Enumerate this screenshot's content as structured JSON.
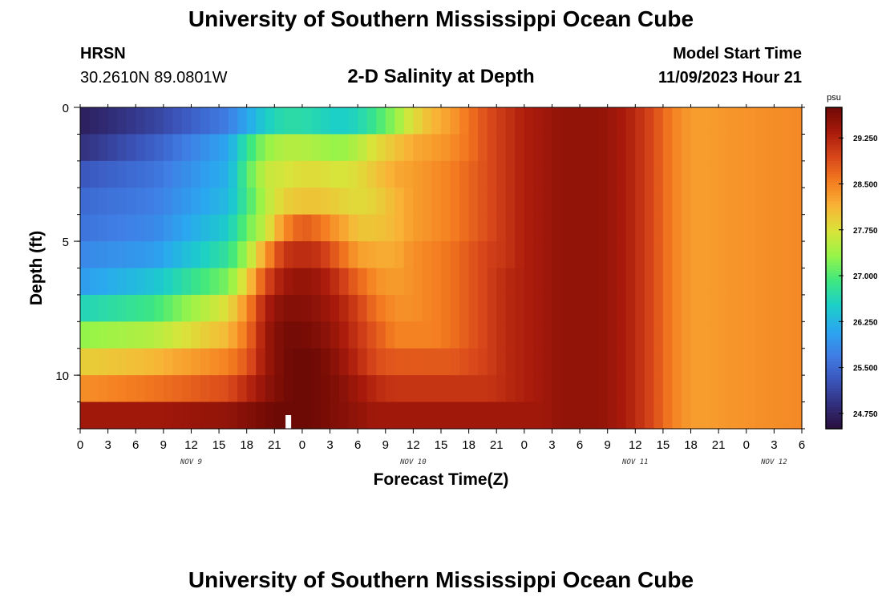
{
  "header": {
    "title": "University of Southern Mississippi Ocean Cube",
    "station": "HRSN",
    "coords": "30.2610N  89.0801W",
    "subtitle": "2-D Salinity at Depth",
    "model_label": "Model Start Time",
    "model_time": "11/09/2023 Hour 21"
  },
  "footer": {
    "title": "University of Southern Mississippi Ocean Cube"
  },
  "colors": {
    "colormap": [
      "#2a0e3d",
      "#32307e",
      "#3b57bd",
      "#3f7fe6",
      "#2aa8ef",
      "#1ccfc8",
      "#3fe87f",
      "#98f448",
      "#d9e43a",
      "#f8b436",
      "#f47c20",
      "#d8461a",
      "#a81a0b",
      "#6e0a05"
    ],
    "marker": "#ffffff"
  },
  "chart_data": {
    "type": "heatmap",
    "title": "2-D Salinity at Depth",
    "xlabel": "Forecast Time(Z)",
    "ylabel": "Depth (ft)",
    "colorbar_unit": "psu",
    "colorbar_range": [
      24.5,
      29.75
    ],
    "colorbar_ticks": [
      24.75,
      25.5,
      26.25,
      27.0,
      27.75,
      28.5,
      29.25
    ],
    "colorbar_tick_labels": [
      "24.750",
      "25.500",
      "26.250",
      "27.000",
      "27.750",
      "28.500",
      "29.250"
    ],
    "x_hours_range": [
      0,
      78
    ],
    "x_tick_step_hours": 3,
    "x_tick_labels": [
      "0",
      "3",
      "6",
      "9",
      "12",
      "15",
      "18",
      "21",
      "0",
      "3",
      "6",
      "9",
      "12",
      "15",
      "18",
      "21",
      "0",
      "3",
      "6",
      "9",
      "12",
      "15",
      "18",
      "21",
      "0",
      "3",
      "6"
    ],
    "day_labels": [
      {
        "hour": 12,
        "text": "NOV 9"
      },
      {
        "hour": 36,
        "text": "NOV 10"
      },
      {
        "hour": 60,
        "text": "NOV 11"
      },
      {
        "hour": 75,
        "text": "NOV 12"
      }
    ],
    "y_range": [
      0,
      12
    ],
    "y_ticks": [
      0,
      5,
      10
    ],
    "y_tick_labels": [
      "0",
      "5",
      "10"
    ],
    "depth_levels": [
      0.5,
      1.5,
      2.5,
      3.5,
      4.5,
      5.5,
      6.5,
      7.5,
      8.5,
      9.5,
      10.5,
      11.5
    ],
    "time_step_hours": 1,
    "current_time_marker_hour": 22.5,
    "salinity_keyframes": {
      "hours": [
        0,
        8,
        16,
        18,
        20,
        22,
        24,
        26,
        28,
        30,
        32,
        34,
        36,
        38,
        40,
        42,
        44,
        46,
        48,
        50,
        52,
        54,
        56,
        58,
        60,
        62,
        64,
        66,
        68,
        70,
        74,
        78
      ],
      "rows": [
        [
          24.7,
          25.1,
          25.7,
          26.1,
          26.5,
          26.7,
          26.7,
          26.6,
          26.5,
          26.6,
          26.9,
          27.3,
          27.8,
          28.1,
          28.3,
          28.6,
          28.9,
          29.1,
          29.3,
          29.4,
          29.5,
          29.5,
          29.5,
          29.4,
          29.2,
          28.9,
          28.5,
          28.3,
          28.3,
          28.35,
          28.4,
          28.45
        ],
        [
          24.9,
          25.4,
          26.1,
          26.8,
          27.3,
          27.5,
          27.5,
          27.4,
          27.3,
          27.5,
          27.8,
          28.0,
          28.2,
          28.3,
          28.4,
          28.6,
          28.9,
          29.1,
          29.3,
          29.4,
          29.5,
          29.5,
          29.5,
          29.4,
          29.2,
          28.9,
          28.5,
          28.3,
          28.3,
          28.35,
          28.4,
          28.45
        ],
        [
          25.3,
          25.6,
          26.2,
          27.0,
          27.6,
          27.7,
          27.8,
          27.8,
          27.7,
          27.8,
          28.0,
          28.2,
          28.3,
          28.4,
          28.5,
          28.7,
          28.9,
          29.1,
          29.3,
          29.4,
          29.5,
          29.5,
          29.5,
          29.4,
          29.2,
          28.9,
          28.5,
          28.3,
          28.3,
          28.35,
          28.4,
          28.45
        ],
        [
          25.5,
          25.7,
          26.3,
          26.9,
          27.5,
          27.9,
          28.0,
          28.0,
          27.9,
          27.8,
          27.9,
          28.1,
          28.3,
          28.4,
          28.5,
          28.7,
          28.9,
          29.1,
          29.3,
          29.4,
          29.5,
          29.5,
          29.5,
          29.4,
          29.2,
          28.9,
          28.5,
          28.3,
          28.3,
          28.35,
          28.4,
          28.45
        ],
        [
          25.6,
          25.8,
          26.5,
          27.1,
          27.6,
          28.4,
          28.8,
          28.6,
          28.3,
          28.0,
          28.0,
          28.1,
          28.3,
          28.4,
          28.5,
          28.7,
          28.9,
          29.1,
          29.3,
          29.4,
          29.5,
          29.5,
          29.5,
          29.4,
          29.2,
          28.9,
          28.5,
          28.3,
          28.3,
          28.35,
          28.4,
          28.45
        ],
        [
          25.8,
          26.0,
          26.8,
          27.4,
          28.3,
          29.1,
          29.2,
          29.1,
          28.7,
          28.3,
          28.2,
          28.2,
          28.4,
          28.5,
          28.6,
          28.8,
          29.0,
          29.1,
          29.3,
          29.4,
          29.5,
          29.5,
          29.5,
          29.4,
          29.2,
          28.9,
          28.5,
          28.3,
          28.3,
          28.35,
          28.4,
          28.45
        ],
        [
          26.0,
          26.4,
          27.2,
          27.9,
          28.9,
          29.4,
          29.5,
          29.4,
          29.1,
          28.7,
          28.4,
          28.3,
          28.4,
          28.5,
          28.6,
          28.8,
          29.0,
          29.2,
          29.3,
          29.4,
          29.5,
          29.5,
          29.5,
          29.4,
          29.2,
          28.9,
          28.5,
          28.3,
          28.3,
          28.35,
          28.4,
          28.45
        ],
        [
          26.6,
          26.9,
          27.8,
          28.4,
          29.3,
          29.6,
          29.6,
          29.5,
          29.3,
          29.0,
          28.6,
          28.4,
          28.4,
          28.5,
          28.6,
          28.8,
          29.0,
          29.2,
          29.3,
          29.4,
          29.5,
          29.5,
          29.5,
          29.4,
          29.2,
          28.9,
          28.5,
          28.3,
          28.3,
          28.35,
          28.4,
          28.45
        ],
        [
          27.3,
          27.5,
          28.1,
          28.6,
          29.4,
          29.7,
          29.7,
          29.6,
          29.4,
          29.1,
          28.8,
          28.5,
          28.5,
          28.5,
          28.6,
          28.8,
          29.0,
          29.2,
          29.3,
          29.4,
          29.5,
          29.5,
          29.5,
          29.4,
          29.2,
          28.9,
          28.5,
          28.3,
          28.3,
          28.35,
          28.4,
          28.45
        ],
        [
          27.9,
          28.1,
          28.5,
          28.8,
          29.4,
          29.7,
          29.8,
          29.7,
          29.5,
          29.2,
          28.9,
          28.8,
          28.8,
          28.8,
          28.8,
          28.9,
          29.0,
          29.2,
          29.3,
          29.4,
          29.5,
          29.5,
          29.5,
          29.4,
          29.2,
          28.9,
          28.5,
          28.3,
          28.3,
          28.35,
          28.4,
          28.45
        ],
        [
          28.4,
          28.6,
          28.9,
          29.2,
          29.5,
          29.7,
          29.8,
          29.7,
          29.6,
          29.4,
          29.2,
          29.1,
          29.1,
          29.1,
          29.1,
          29.1,
          29.1,
          29.2,
          29.3,
          29.4,
          29.5,
          29.5,
          29.5,
          29.4,
          29.2,
          28.9,
          28.5,
          28.3,
          28.3,
          28.35,
          28.4,
          28.45
        ],
        [
          29.4,
          29.4,
          29.5,
          29.6,
          29.7,
          29.8,
          29.8,
          29.7,
          29.6,
          29.5,
          29.4,
          29.4,
          29.4,
          29.4,
          29.4,
          29.4,
          29.4,
          29.4,
          29.4,
          29.4,
          29.5,
          29.5,
          29.5,
          29.4,
          29.2,
          28.9,
          28.5,
          28.3,
          28.3,
          28.35,
          28.4,
          28.45
        ]
      ]
    }
  }
}
